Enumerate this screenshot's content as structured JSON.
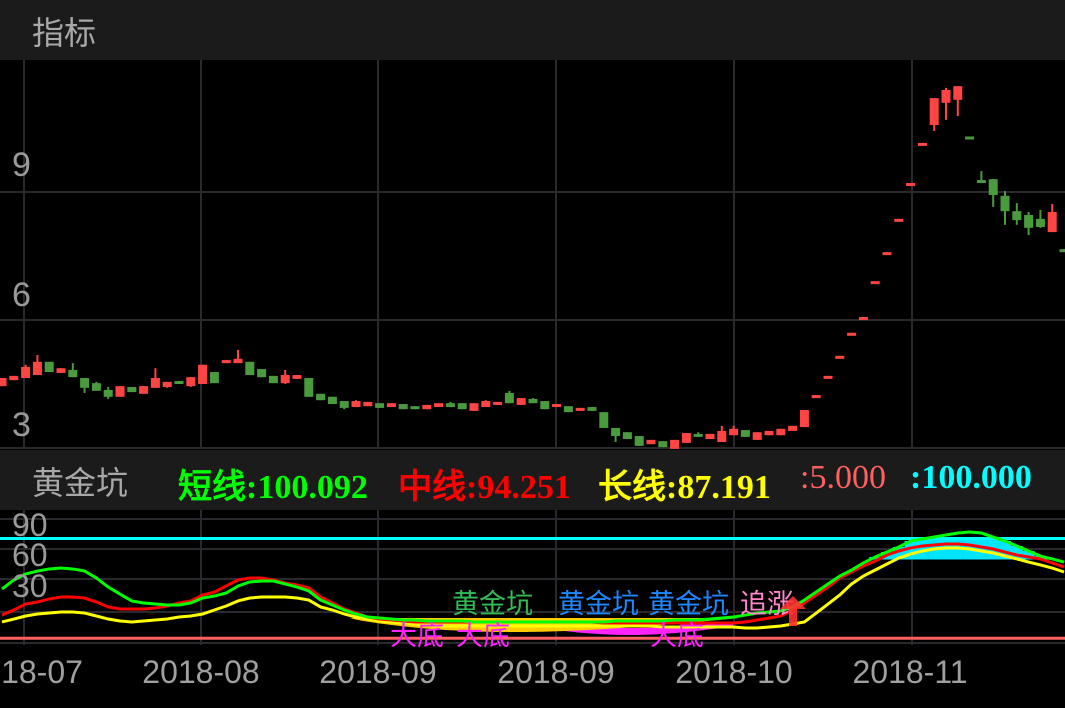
{
  "header": {
    "title": "指标"
  },
  "indicator_header": {
    "title": "黄金坑",
    "short": "短线:100.092",
    "mid": "中线:94.251",
    "long": "长线:87.191",
    "low_line": ":5.000",
    "high_line": ":100.000"
  },
  "colors": {
    "up": "#ff4444",
    "down": "#4a9a3e",
    "short": "#00ff00",
    "mid": "#ff0000",
    "long": "#ffff00",
    "low_line": "#ff6060",
    "high_line": "#00ffff",
    "pit_fill": "#ffcc00",
    "bottom_fill": "#ff22ff",
    "top_fill": "#00e5ff",
    "grid": "#2a2a2e"
  },
  "annotations": [
    {
      "text": "大底",
      "color": "#ff22ff"
    },
    {
      "text": "大底",
      "color": "#ff22ff"
    },
    {
      "text": "黄金坑",
      "color": "#33bb55"
    },
    {
      "text": "黄金坑",
      "color": "#1e88ff"
    },
    {
      "text": "黄金坑",
      "color": "#1e88ff"
    },
    {
      "text": "追涨",
      "color": "#ff88cc"
    },
    {
      "text": "大底",
      "color": "#ff22ff"
    }
  ],
  "chart_data": [
    {
      "type": "candlestick",
      "y_ticks": [
        "9",
        "6",
        "3"
      ],
      "ylim": [
        3,
        12.1
      ],
      "grid": true,
      "x_tick_labels": [
        "18-07",
        "2018-08",
        "2018-09",
        "2018-09",
        "2018-10",
        "2018-11"
      ],
      "candles_ohlc": [
        [
          4.45,
          4.64,
          4.45,
          4.64
        ],
        [
          4.59,
          4.69,
          4.59,
          4.69
        ],
        [
          4.64,
          4.95,
          4.64,
          4.9
        ],
        [
          4.71,
          5.18,
          4.71,
          5.02
        ],
        [
          5.02,
          5.02,
          4.78,
          4.78
        ],
        [
          4.76,
          4.87,
          4.76,
          4.87
        ],
        [
          4.83,
          4.99,
          4.66,
          4.66
        ],
        [
          4.64,
          4.64,
          4.29,
          4.41
        ],
        [
          4.52,
          4.55,
          4.34,
          4.34
        ],
        [
          4.36,
          4.43,
          4.15,
          4.2
        ],
        [
          4.2,
          4.45,
          4.2,
          4.45
        ],
        [
          4.43,
          4.43,
          4.31,
          4.31
        ],
        [
          4.27,
          4.45,
          4.27,
          4.45
        ],
        [
          4.41,
          4.87,
          4.41,
          4.64
        ],
        [
          4.43,
          4.55,
          4.41,
          4.55
        ],
        [
          4.57,
          4.57,
          4.5,
          4.5
        ],
        [
          4.45,
          4.66,
          4.43,
          4.66
        ],
        [
          4.5,
          4.95,
          4.5,
          4.95
        ],
        [
          4.78,
          4.78,
          4.52,
          4.52
        ],
        [
          5.02,
          5.06,
          5.02,
          5.06
        ],
        [
          4.99,
          5.3,
          4.99,
          5.09
        ],
        [
          5.02,
          5.02,
          4.71,
          4.71
        ],
        [
          4.85,
          4.85,
          4.66,
          4.66
        ],
        [
          4.69,
          4.69,
          4.52,
          4.52
        ],
        [
          4.52,
          4.83,
          4.5,
          4.71
        ],
        [
          4.62,
          4.71,
          4.62,
          4.71
        ],
        [
          4.64,
          4.64,
          4.2,
          4.2
        ],
        [
          4.27,
          4.27,
          4.12,
          4.12
        ],
        [
          4.2,
          4.2,
          4.03,
          4.03
        ],
        [
          4.1,
          4.1,
          3.91,
          3.94
        ],
        [
          3.96,
          4.12,
          3.96,
          4.1
        ],
        [
          3.98,
          4.08,
          3.98,
          4.08
        ],
        [
          4.05,
          4.05,
          3.94,
          3.94
        ],
        [
          3.96,
          4.05,
          3.96,
          4.05
        ],
        [
          4.03,
          4.03,
          3.91,
          3.91
        ],
        [
          3.98,
          3.98,
          3.91,
          3.91
        ],
        [
          3.91,
          4.01,
          3.91,
          4.01
        ],
        [
          3.96,
          4.05,
          3.96,
          4.05
        ],
        [
          4.05,
          4.08,
          3.96,
          3.96
        ],
        [
          4.05,
          4.05,
          3.91,
          3.91
        ],
        [
          3.87,
          4.05,
          3.87,
          4.05
        ],
        [
          3.96,
          4.12,
          3.96,
          4.1
        ],
        [
          4.01,
          4.08,
          4.01,
          4.08
        ],
        [
          4.29,
          4.34,
          4.05,
          4.05
        ],
        [
          4.01,
          4.17,
          4.01,
          4.17
        ],
        [
          4.15,
          4.17,
          4.05,
          4.05
        ],
        [
          4.1,
          4.1,
          3.91,
          3.91
        ],
        [
          3.96,
          4.03,
          3.96,
          4.03
        ],
        [
          3.98,
          3.98,
          3.84,
          3.84
        ],
        [
          3.87,
          3.94,
          3.87,
          3.94
        ],
        [
          3.96,
          3.96,
          3.87,
          3.87
        ],
        [
          3.84,
          3.84,
          3.47,
          3.47
        ],
        [
          3.47,
          3.47,
          3.14,
          3.28
        ],
        [
          3.37,
          3.37,
          3.21,
          3.21
        ],
        [
          3.28,
          3.28,
          3.05,
          3.05
        ],
        [
          3.09,
          3.19,
          3.09,
          3.19
        ],
        [
          3.16,
          3.16,
          3.02,
          3.02
        ],
        [
          2.98,
          3.19,
          2.98,
          3.19
        ],
        [
          3.12,
          3.35,
          3.12,
          3.35
        ],
        [
          3.33,
          3.37,
          3.26,
          3.26
        ],
        [
          3.21,
          3.33,
          3.21,
          3.33
        ],
        [
          3.14,
          3.52,
          3.14,
          3.4
        ],
        [
          3.3,
          3.52,
          3.3,
          3.45
        ],
        [
          3.42,
          3.42,
          3.26,
          3.26
        ],
        [
          3.19,
          3.37,
          3.19,
          3.37
        ],
        [
          3.3,
          3.4,
          3.3,
          3.4
        ],
        [
          3.3,
          3.45,
          3.3,
          3.45
        ],
        [
          3.4,
          3.52,
          3.4,
          3.52
        ],
        [
          3.49,
          3.89,
          3.49,
          3.89
        ],
        [
          4.22,
          4.24,
          4.22,
          4.24
        ],
        [
          4.67,
          4.69,
          4.67,
          4.69
        ],
        [
          5.14,
          5.16,
          5.14,
          5.16
        ],
        [
          5.68,
          5.7,
          5.68,
          5.7
        ],
        [
          6.05,
          6.07,
          6.05,
          6.07
        ],
        [
          6.89,
          6.91,
          6.89,
          6.91
        ],
        [
          7.57,
          7.59,
          7.57,
          7.59
        ],
        [
          8.35,
          8.37,
          8.35,
          8.37
        ],
        [
          9.18,
          9.21,
          9.18,
          9.21
        ],
        [
          10.12,
          10.15,
          10.12,
          10.15
        ],
        [
          10.57,
          11.2,
          10.43,
          11.2
        ],
        [
          11.09,
          11.44,
          10.69,
          11.39
        ],
        [
          11.16,
          11.48,
          10.78,
          11.48
        ],
        [
          10.3,
          10.3,
          10.28,
          10.28
        ],
        [
          9.28,
          9.49,
          9.21,
          9.21
        ],
        [
          9.3,
          9.3,
          8.65,
          8.93
        ],
        [
          8.91,
          9.02,
          8.23,
          8.55
        ],
        [
          8.55,
          8.74,
          8.23,
          8.34
        ],
        [
          8.46,
          8.53,
          7.99,
          8.16
        ],
        [
          8.37,
          8.58,
          8.16,
          8.18
        ],
        [
          8.06,
          8.72,
          8.06,
          8.53
        ],
        [
          7.66,
          7.66,
          7.64,
          7.64
        ]
      ]
    },
    {
      "type": "line",
      "title": "黄金坑",
      "y_ticks": [
        "90",
        "60",
        "30"
      ],
      "ylim": [
        -1,
        127
      ],
      "grid": true,
      "reference_lines": [
        5,
        100
      ],
      "series": [
        {
          "name": "短线",
          "values": [
            51.9,
            60.5,
            66.2,
            69.0,
            71.0,
            71.9,
            71.0,
            69.0,
            62.4,
            53.8,
            47.1,
            40.5,
            38.6,
            37.6,
            36.7,
            36.7,
            38.6,
            43.3,
            45.2,
            48.1,
            54.8,
            58.6,
            59.5,
            59.5,
            56.7,
            53.8,
            50.0,
            41.4,
            36.7,
            31.9,
            28.1,
            25.2,
            24.3,
            23.3,
            22.4,
            22.4,
            21.4,
            21.4,
            21.4,
            21.4,
            20.5,
            20.5,
            20.5,
            20.5,
            20.5,
            20.5,
            20.5,
            20.5,
            20.5,
            20.5,
            20.5,
            20.5,
            21.4,
            21.4,
            21.4,
            21.4,
            21.4,
            22.4,
            22.4,
            22.4,
            23.3,
            24.3,
            25.2,
            27.1,
            29.0,
            30.0,
            31.0,
            34.8,
            41.4,
            49.0,
            56.7,
            64.3,
            70.0,
            76.7,
            82.4,
            87.1,
            91.9,
            97.6,
            99.5,
            101.4,
            103.3,
            105.2,
            106.2,
            105.2,
            101.4,
            97.6,
            92.9,
            88.1,
            83.3,
            80.5,
            77.6
          ]
        },
        {
          "name": "中线",
          "values": [
            27.1,
            31.9,
            37.6,
            39.5,
            42.4,
            44.3,
            44.3,
            43.3,
            39.5,
            34.8,
            32.9,
            32.9,
            32.9,
            33.8,
            35.7,
            38.6,
            40.5,
            46.2,
            49.0,
            54.8,
            60.5,
            62.4,
            62.4,
            60.5,
            57.6,
            55.7,
            52.9,
            44.3,
            38.6,
            32.9,
            29.0,
            25.2,
            23.3,
            22.4,
            21.4,
            20.5,
            20.5,
            20.5,
            20.5,
            20.5,
            20.5,
            20.5,
            20.5,
            20.5,
            20.5,
            20.5,
            20.5,
            20.5,
            20.5,
            20.5,
            20.5,
            19.5,
            19.5,
            19.5,
            19.5,
            19.5,
            19.5,
            19.5,
            19.5,
            19.5,
            19.5,
            19.5,
            19.5,
            20.5,
            22.4,
            24.3,
            26.2,
            31.9,
            38.6,
            46.2,
            53.8,
            62.4,
            68.1,
            73.8,
            78.6,
            84.3,
            88.1,
            91.0,
            92.9,
            93.8,
            94.8,
            94.8,
            93.8,
            91.9,
            90.0,
            87.1,
            84.3,
            82.4,
            80.5,
            76.7,
            72.9
          ]
        },
        {
          "name": "长线",
          "values": [
            20.5,
            23.3,
            26.2,
            28.1,
            29.0,
            30.0,
            30.0,
            29.0,
            26.2,
            23.3,
            21.4,
            20.5,
            21.4,
            22.4,
            23.3,
            25.2,
            26.2,
            28.1,
            31.9,
            35.7,
            40.5,
            43.3,
            44.3,
            44.3,
            44.3,
            43.3,
            41.4,
            34.8,
            31.9,
            28.1,
            25.2,
            23.3,
            21.4,
            20.5,
            19.5,
            18.6,
            17.6,
            16.7,
            16.7,
            16.7,
            16.7,
            16.7,
            16.7,
            16.7,
            16.7,
            16.7,
            16.7,
            16.7,
            16.7,
            16.7,
            16.7,
            16.7,
            16.7,
            16.7,
            16.7,
            16.7,
            15.7,
            15.7,
            15.7,
            15.7,
            15.7,
            15.7,
            15.7,
            14.8,
            14.8,
            15.7,
            16.7,
            18.6,
            20.5,
            29.0,
            37.6,
            46.2,
            56.7,
            64.3,
            70.0,
            75.7,
            81.4,
            85.2,
            88.1,
            90.0,
            91.0,
            91.0,
            90.0,
            88.1,
            86.2,
            83.3,
            80.5,
            77.6,
            74.8,
            71.9,
            68.1
          ]
        }
      ]
    }
  ]
}
